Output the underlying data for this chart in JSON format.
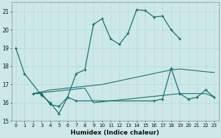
{
  "xlabel": "Humidex (Indice chaleur)",
  "ylabel": "",
  "background_color": "#cce8e8",
  "grid_color": "#b8d8d8",
  "line_color": "#1a6b6b",
  "xlim": [
    -0.5,
    23.5
  ],
  "ylim": [
    15,
    21.5
  ],
  "yticks": [
    15,
    16,
    17,
    18,
    19,
    20,
    21
  ],
  "xticks": [
    0,
    1,
    2,
    3,
    4,
    5,
    6,
    7,
    8,
    9,
    10,
    11,
    12,
    13,
    14,
    15,
    16,
    17,
    18,
    19,
    20,
    21,
    22,
    23
  ],
  "series1_x": [
    0,
    1,
    3,
    4,
    5,
    6,
    7,
    8,
    9,
    10,
    11,
    12,
    13,
    14,
    15,
    16,
    17,
    18,
    19
  ],
  "series1_y": [
    19.0,
    17.6,
    16.4,
    16.0,
    15.4,
    16.3,
    17.6,
    17.8,
    20.3,
    20.6,
    19.5,
    19.2,
    19.8,
    21.1,
    21.05,
    20.7,
    20.75,
    20.0,
    19.5
  ],
  "series2_x": [
    2,
    3,
    4,
    5,
    6,
    7,
    16,
    17,
    18,
    19,
    20,
    21,
    22,
    23
  ],
  "series2_y": [
    16.5,
    16.5,
    15.9,
    15.8,
    16.3,
    16.1,
    16.1,
    16.2,
    17.9,
    16.5,
    16.2,
    16.3,
    16.7,
    16.3
  ],
  "series3_x": [
    2,
    3,
    4,
    5,
    6,
    7,
    8,
    9,
    10,
    11,
    12,
    13,
    14,
    15,
    16,
    17,
    18,
    19,
    20,
    21,
    22,
    23
  ],
  "series3_y": [
    16.5,
    16.55,
    16.6,
    16.65,
    16.7,
    16.75,
    16.8,
    16.0,
    16.05,
    16.1,
    16.15,
    16.2,
    16.25,
    16.3,
    16.35,
    16.4,
    16.45,
    16.5,
    16.5,
    16.5,
    16.5,
    16.3
  ],
  "series4_x": [
    2,
    3,
    4,
    5,
    6,
    7,
    8,
    9,
    10,
    11,
    12,
    13,
    14,
    15,
    16,
    17,
    18,
    19,
    20,
    21,
    22,
    23
  ],
  "series4_y": [
    16.5,
    16.6,
    16.7,
    16.75,
    16.8,
    16.85,
    16.9,
    16.95,
    17.0,
    17.1,
    17.2,
    17.3,
    17.4,
    17.5,
    17.6,
    17.7,
    17.8,
    17.85,
    17.8,
    17.75,
    17.7,
    17.65
  ]
}
